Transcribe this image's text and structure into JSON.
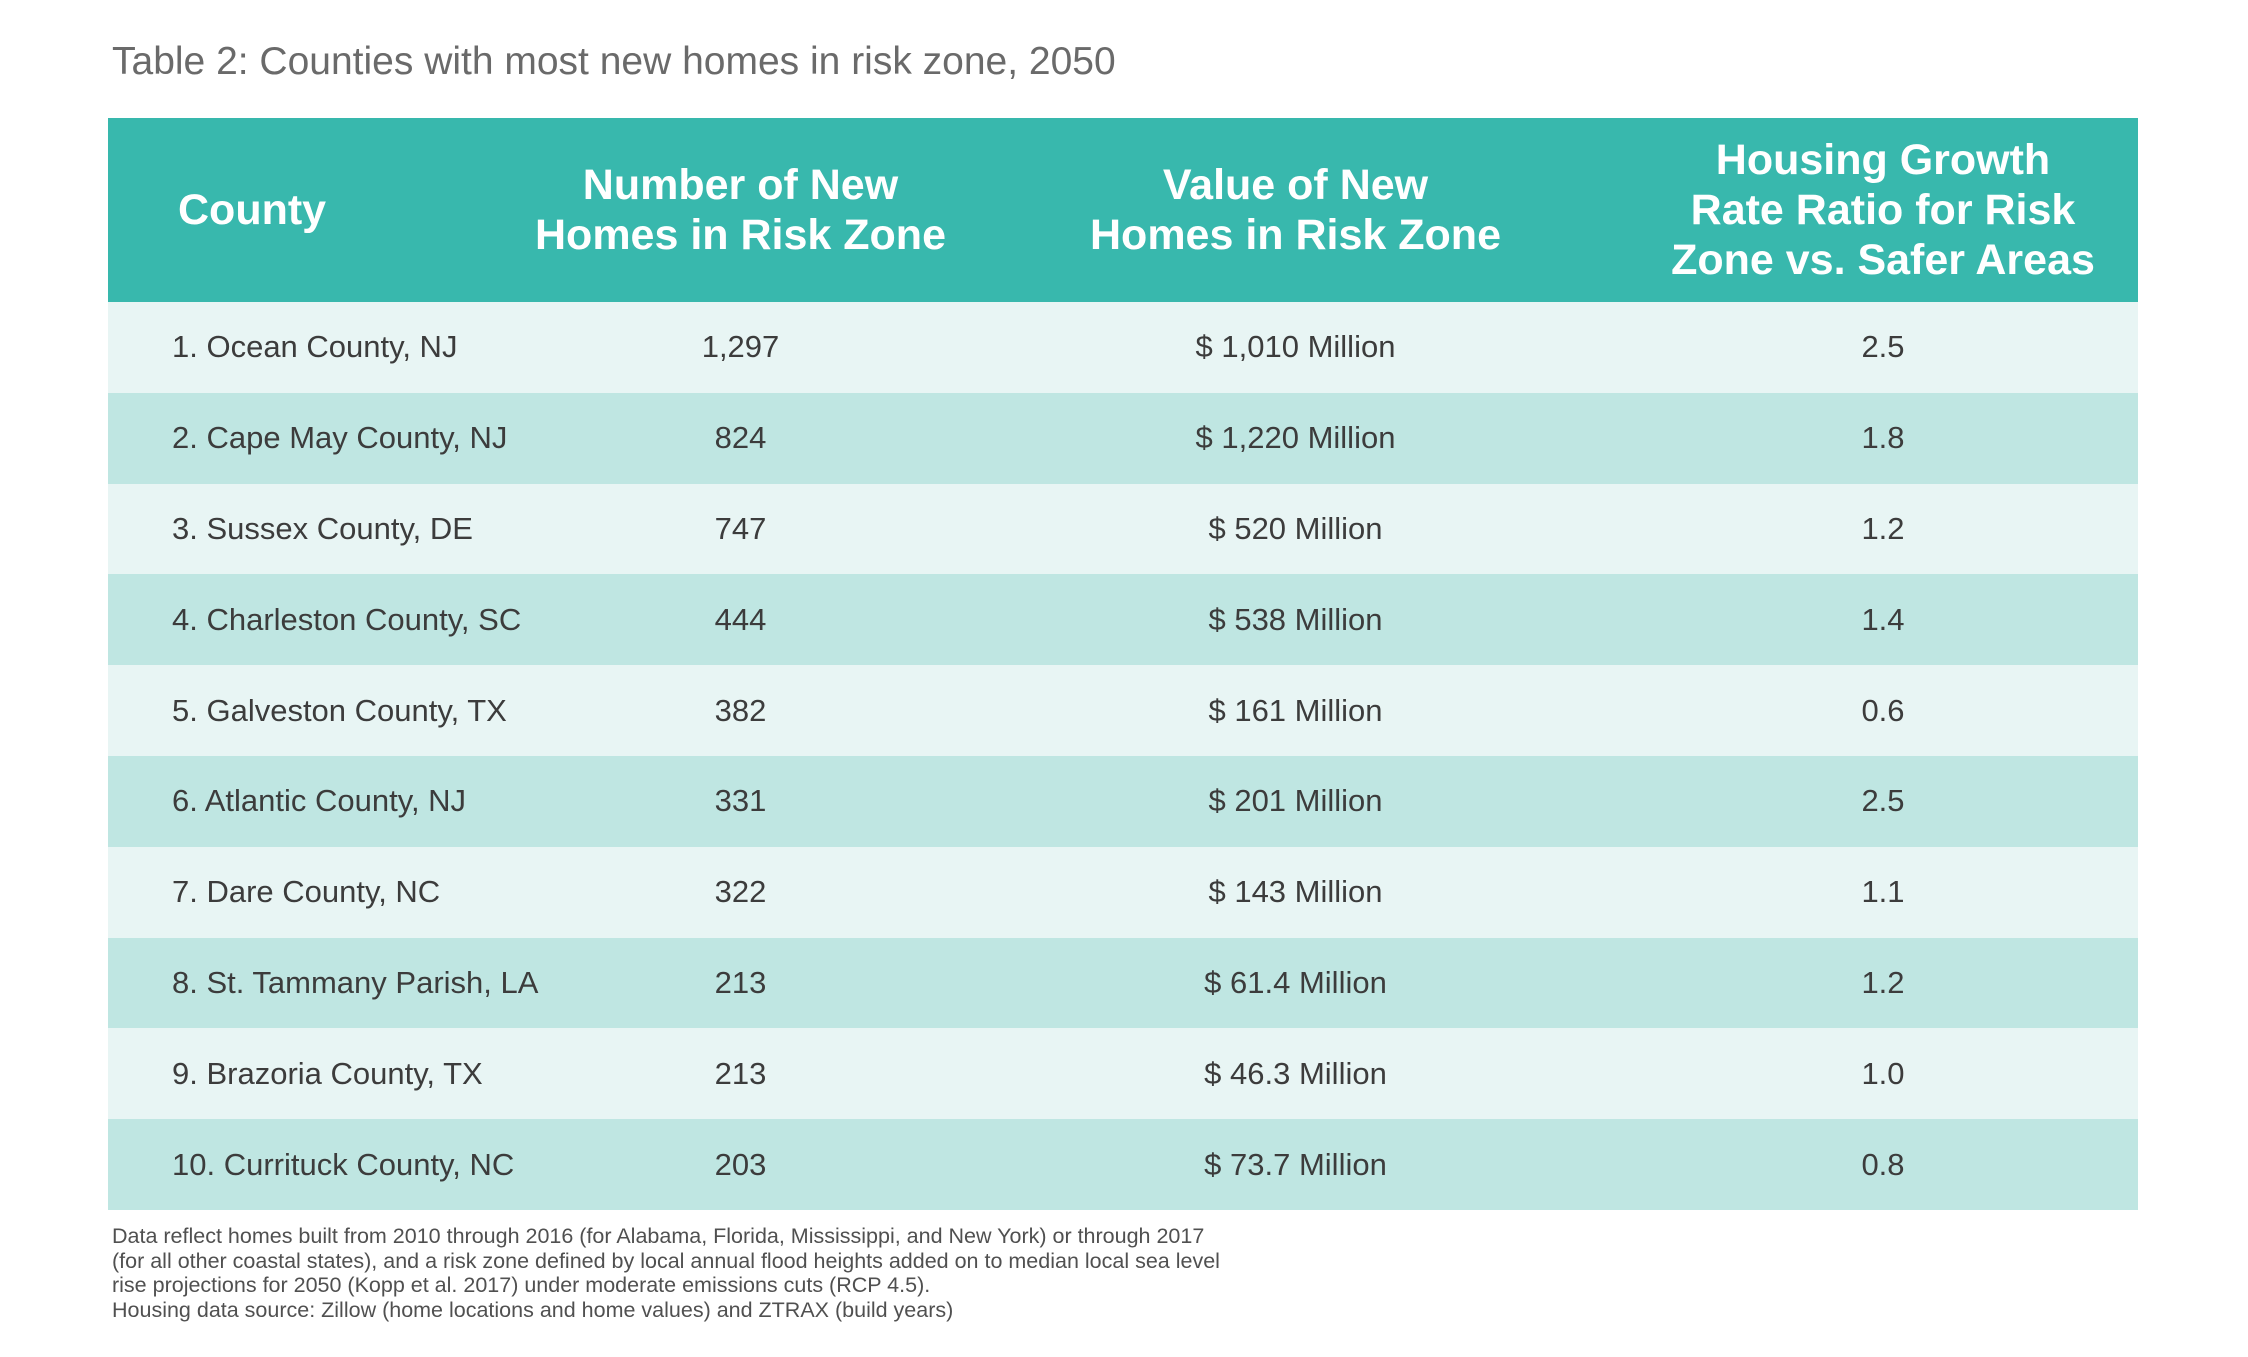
{
  "title": "Table 2: Counties with most new homes in risk zone, 2050",
  "table": {
    "headers": [
      "County",
      "Number of New\nHomes in Risk Zone",
      "Value of New\nHomes in Risk Zone",
      "Housing Growth\nRate Ratio for Risk\nZone vs. Safer Areas"
    ],
    "rows": [
      {
        "county": "1. Ocean County, NJ",
        "number": "1,297",
        "value": "$ 1,010 Million",
        "ratio": "2.5"
      },
      {
        "county": "2. Cape May County, NJ",
        "number": "824",
        "value": "$ 1,220 Million",
        "ratio": "1.8"
      },
      {
        "county": "3. Sussex County, DE",
        "number": "747",
        "value": "$ 520 Million",
        "ratio": "1.2"
      },
      {
        "county": "4. Charleston County, SC",
        "number": "444",
        "value": "$ 538 Million",
        "ratio": "1.4"
      },
      {
        "county": "5. Galveston County, TX",
        "number": "382",
        "value": "$ 161 Million",
        "ratio": "0.6"
      },
      {
        "county": "6. Atlantic County, NJ",
        "number": "331",
        "value": "$ 201 Million",
        "ratio": "2.5"
      },
      {
        "county": "7. Dare County, NC",
        "number": "322",
        "value": "$ 143 Million",
        "ratio": "1.1"
      },
      {
        "county": "8. St. Tammany Parish, LA",
        "number": "213",
        "value": "$ 61.4 Million",
        "ratio": "1.2"
      },
      {
        "county": "9. Brazoria County, TX",
        "number": "213",
        "value": "$ 46.3 Million",
        "ratio": "1.0"
      },
      {
        "county": "10. Currituck County, NC",
        "number": "203",
        "value": "$ 73.7 Million",
        "ratio": "0.8"
      }
    ]
  },
  "footnote": {
    "lines": [
      "Data reflect homes built from 2010 through 2016 (for Alabama, Florida, Mississippi, and New York) or through 2017",
      "(for all other coastal states), and a risk zone defined by local annual flood heights added on to median local sea level",
      "rise projections for 2050 (Kopp et al. 2017) under moderate emissions cuts (RCP 4.5).",
      "Housing data source: Zillow (home locations and home values) and ZTRAX (build years)"
    ]
  },
  "colors": {
    "header_bg": "#38b8ad",
    "row_light": "#e8f5f4",
    "row_dark": "#bfe6e2"
  }
}
